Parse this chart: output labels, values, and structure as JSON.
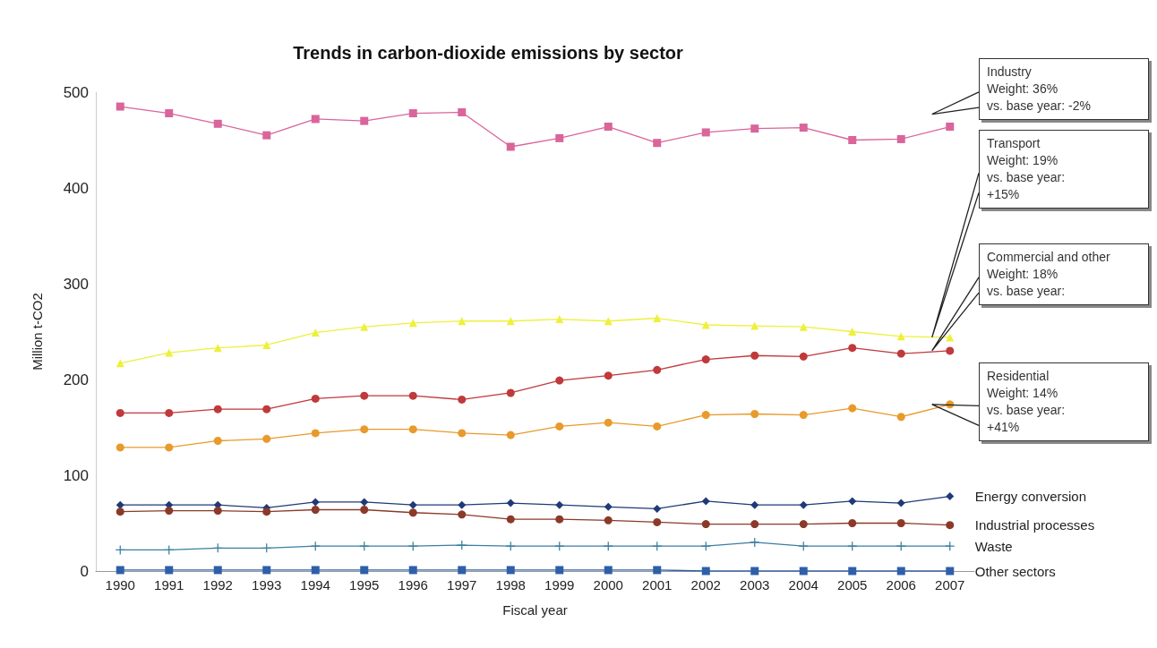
{
  "chart_data": {
    "type": "line",
    "title": "Trends in carbon-dioxide emissions by sector",
    "xlabel": "Fiscal year",
    "ylabel": "Million t-CO2",
    "categories": [
      "1990",
      "1991",
      "1992",
      "1993",
      "1994",
      "1995",
      "1996",
      "1997",
      "1998",
      "1999",
      "2000",
      "2001",
      "2002",
      "2003",
      "2004",
      "2005",
      "2006",
      "2007"
    ],
    "ylim": [
      0,
      500
    ],
    "yticks": [
      0,
      100,
      200,
      300,
      400,
      500
    ],
    "grid": false,
    "legend": false,
    "line_style": "solid",
    "series": [
      {
        "name": "Industry",
        "color": "#d9659a",
        "marker": "square",
        "values": [
          485,
          478,
          467,
          455,
          472,
          470,
          478,
          479,
          443,
          452,
          464,
          447,
          458,
          462,
          463,
          450,
          451,
          464
        ]
      },
      {
        "name": "Transport",
        "color": "#eef03a",
        "marker": "triangle",
        "values": [
          217,
          228,
          233,
          236,
          249,
          255,
          259,
          261,
          261,
          263,
          261,
          264,
          257,
          256,
          255,
          250,
          245,
          244
        ]
      },
      {
        "name": "Commercial and other",
        "color": "#c0393b",
        "marker": "circle",
        "values": [
          165,
          165,
          169,
          169,
          180,
          183,
          183,
          179,
          186,
          199,
          204,
          210,
          221,
          225,
          224,
          233,
          227,
          230
        ]
      },
      {
        "name": "Residential",
        "color": "#e89a2c",
        "marker": "circle",
        "values": [
          129,
          129,
          136,
          138,
          144,
          148,
          148,
          144,
          142,
          151,
          155,
          151,
          163,
          164,
          163,
          170,
          161,
          174
        ]
      },
      {
        "name": "Energy conversion",
        "color": "#1f3a78",
        "marker": "diamond",
        "values": [
          69,
          69,
          69,
          66,
          72,
          72,
          69,
          69,
          71,
          69,
          67,
          65,
          73,
          69,
          69,
          73,
          71,
          78
        ]
      },
      {
        "name": "Industrial processes",
        "color": "#8b3a2a",
        "marker": "circle",
        "values": [
          62,
          63,
          63,
          62,
          64,
          64,
          61,
          59,
          54,
          54,
          53,
          51,
          49,
          49,
          49,
          50,
          50,
          48
        ]
      },
      {
        "name": "Waste",
        "color": "#3b7ea1",
        "marker": "cross",
        "values": [
          22,
          22,
          24,
          24,
          26,
          26,
          26,
          27,
          26,
          26,
          26,
          26,
          26,
          30,
          26,
          26,
          26,
          26
        ]
      },
      {
        "name": "Other sectors",
        "color": "#2e5fa8",
        "marker": "square",
        "values": [
          1,
          1,
          1,
          1,
          1,
          1,
          1,
          1,
          1,
          1,
          1,
          1,
          0,
          0,
          0,
          0,
          0,
          0
        ]
      }
    ],
    "annotations": [
      "Weight: 36%\nvs. base year: -2%",
      "Weight: 19%\nvs. base year:\n+15%",
      "Weight: 18%\nvs. base year:",
      "Weight: 14%\nvs. base year:\n+41%"
    ]
  }
}
